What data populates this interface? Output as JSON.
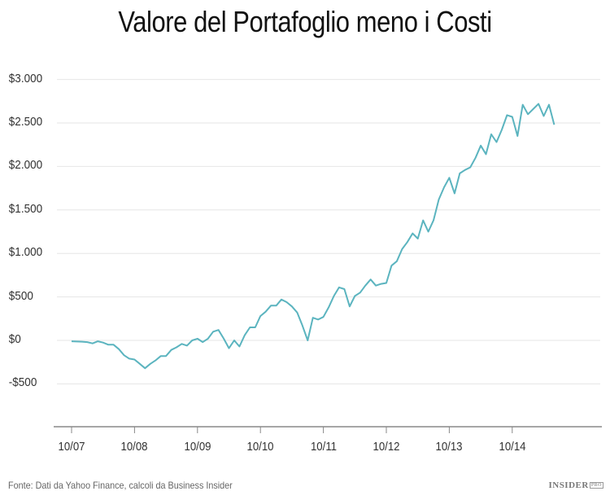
{
  "title": "Valore del Portafoglio meno i Costi",
  "source": "Fonte: Dati da Yahoo Finance, calcoli da Business Insider",
  "logo": {
    "main": "INSIDER",
    "badge": "PRO"
  },
  "colors": {
    "line": "#5bb4bf",
    "grid": "#e6e6e6",
    "axis": "#888888"
  },
  "chart_data": {
    "type": "line",
    "title": "Valore del Portafoglio meno i Costi",
    "xlabel": "",
    "ylabel": "",
    "ylim": [
      -1000,
      3000
    ],
    "y_ticks": [
      3000,
      2500,
      2000,
      1500,
      1000,
      500,
      0,
      -500
    ],
    "y_tick_labels": [
      "$3.000",
      "$2.500",
      "$2.000",
      "$1.500",
      "$1.000",
      "$500",
      "$0",
      "-$500"
    ],
    "x_tick_labels": [
      "10/07",
      "10/08",
      "10/09",
      "10/10",
      "10/11",
      "10/12",
      "10/13",
      "10/14"
    ],
    "grid": true,
    "legend": null,
    "series": [
      {
        "name": "Valore del Portafoglio meno i Costi",
        "x_months_since_oct07": [
          0,
          2,
          3,
          4,
          5,
          6,
          7,
          8,
          9,
          10,
          11,
          12,
          13,
          14,
          15,
          16,
          17,
          18,
          19,
          20,
          21,
          22,
          23,
          24,
          25,
          26,
          27,
          28,
          29,
          30,
          31,
          32,
          33,
          34,
          35,
          36,
          37,
          38,
          39,
          40,
          41,
          42,
          43,
          44,
          45,
          46,
          47,
          48,
          49,
          50,
          51,
          52,
          53,
          54,
          55,
          56,
          57,
          58,
          59,
          60,
          61,
          62,
          63,
          64,
          65,
          66,
          67,
          68,
          69,
          70,
          71,
          72,
          73,
          74,
          75,
          76,
          77,
          78,
          79,
          80,
          81,
          82,
          83,
          84,
          85,
          86,
          87,
          88,
          89,
          90,
          91,
          92,
          93,
          94,
          95,
          96
        ],
        "values": [
          -10,
          -15,
          -20,
          -35,
          -10,
          -25,
          -50,
          -50,
          -100,
          -170,
          -210,
          -220,
          -270,
          -320,
          -270,
          -230,
          -180,
          -180,
          -110,
          -80,
          -40,
          -60,
          0,
          20,
          -20,
          20,
          100,
          120,
          20,
          -90,
          0,
          -70,
          60,
          150,
          150,
          280,
          330,
          400,
          400,
          470,
          440,
          390,
          320,
          170,
          0,
          260,
          240,
          270,
          380,
          510,
          610,
          590,
          390,
          510,
          550,
          630,
          700,
          630,
          650,
          660,
          860,
          910,
          1050,
          1130,
          1230,
          1170,
          1380,
          1250,
          1380,
          1620,
          1760,
          1870,
          1690,
          1920,
          1960,
          1990,
          2100,
          2240,
          2140,
          2370,
          2280,
          2420,
          2590,
          2570,
          2350,
          2710,
          2600,
          2660,
          2720,
          2580,
          2710,
          2480
        ]
      }
    ]
  }
}
